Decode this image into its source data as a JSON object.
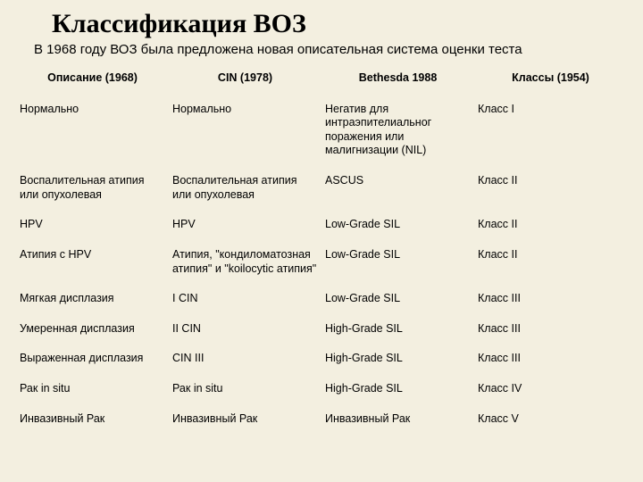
{
  "title": "Классификация ВОЗ",
  "subtitle": "В 1968 году ВОЗ была предложена новая описательная система оценки теста",
  "headers": {
    "c1": "Описание (1968)",
    "c2": "CIN (1978)",
    "c3": "Bethesda 1988",
    "c4": "Классы (1954)"
  },
  "rows": [
    {
      "c1": "Нормально",
      "c2": "Нормально",
      "c3": "Негатив для интраэпителиальног поражения или малигнизации (NIL)",
      "c4": "Класс I"
    },
    {
      "c1": "Воспалительная атипия или опухолевая",
      "c2": "Воспалительная атипия или опухолевая",
      "c3": "ASCUS",
      "c4": "Класс II"
    },
    {
      "c1": "HPV",
      "c2": "HPV",
      "c3": "Low-Grade SIL",
      "c4": "Класс II"
    },
    {
      "c1": "Атипия с HPV",
      "c2": "Атипия, \"кондиломатозная атипия\" и \"koilocytic атипия\"",
      "c3": "Low-Grade SIL",
      "c4": "Класс II"
    },
    {
      "c1": "Мягкая дисплазия",
      "c2": "I CIN",
      "c3": "Low-Grade SIL",
      "c4": "Класс III"
    },
    {
      "c1": "Умеренная дисплазия",
      "c2": "II CIN",
      "c3": "High-Grade SIL",
      "c4": "Класс III"
    },
    {
      "c1": "Выраженная дисплазия",
      "c2": "CIN III",
      "c3": "High-Grade SIL",
      "c4": "Класс III"
    },
    {
      "c1": "Рак in situ",
      "c2": "Рак in situ",
      "c3": "High-Grade SIL",
      "c4": "Класс IV"
    },
    {
      "c1": "Инвазивный Рак",
      "c2": "Инвазивный Рак",
      "c3": "Инвазивный Рак",
      "c4": "Класс V"
    }
  ],
  "style": {
    "background_color": "#f3efe0",
    "title_font": "Times New Roman",
    "title_fontsize": 30,
    "title_fontweight": "bold",
    "subtitle_fontsize": 15,
    "body_font": "Arial",
    "body_fontsize": 12.5,
    "text_color": "#000000"
  }
}
